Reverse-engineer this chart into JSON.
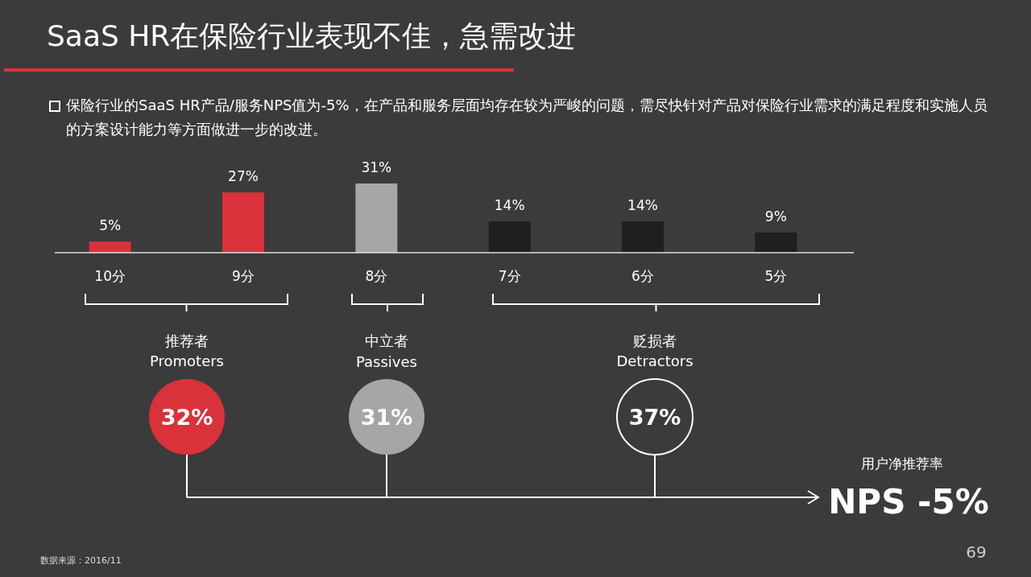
{
  "chart_data": {
    "type": "bar",
    "title": "SaaS HR在保险行业表现不佳，急需改进",
    "subtitle": "保险行业的SaaS HR产品/服务NPS值为-5%，在产品和服务层面均存在较为严峻的问题，需尽快针对产品对保险行业需求的满足程度和实施人员的方案设计能力等方面做进一步的改进。",
    "categories": [
      "10分",
      "9分",
      "8分",
      "7分",
      "6分",
      "5分"
    ],
    "values": [
      5,
      27,
      31,
      14,
      14,
      9
    ],
    "colors": [
      "#d9323a",
      "#d9323a",
      "#a6a6a6",
      "#1f1f1f",
      "#1f1f1f",
      "#1f1f1f"
    ],
    "value_labels": [
      "5%",
      "27%",
      "31%",
      "14%",
      "14%",
      "9%"
    ],
    "annotations": [
      "推荐者",
      "Promoters",
      "32%",
      "中立者",
      "Passives",
      "31%",
      "贬损者",
      "Detractors",
      "37%",
      "用户净推荐率",
      "NPS  -5%",
      "数据来源：2016/11",
      "69"
    ]
  }
}
